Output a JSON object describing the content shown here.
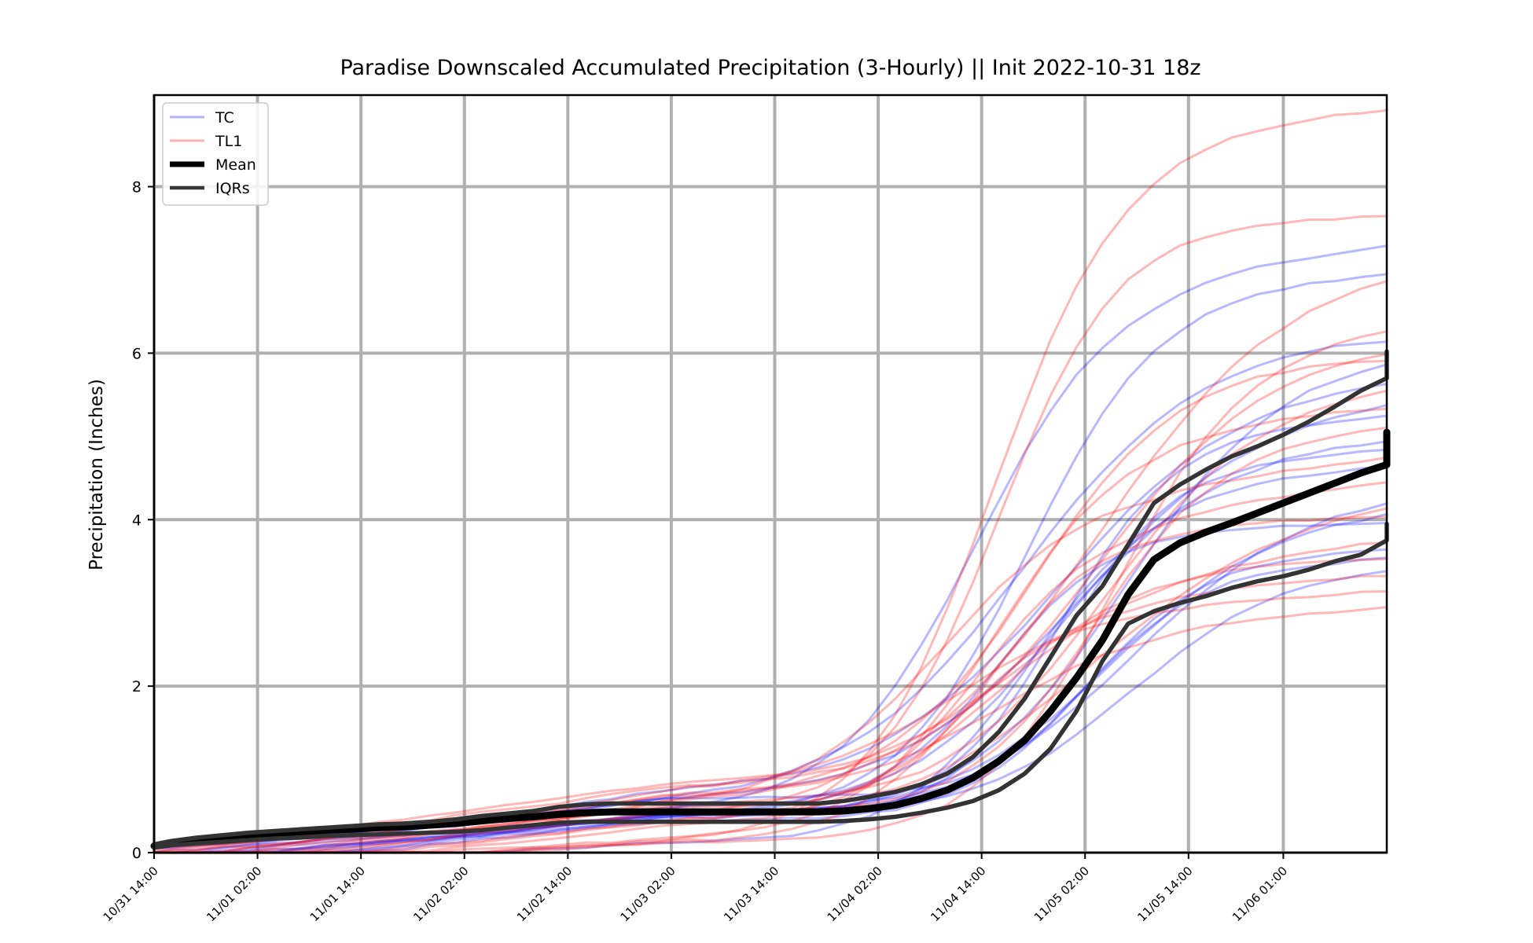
{
  "chart_data": {
    "type": "line",
    "title": "Paradise Downscaled Accumulated Precipitation (3-Hourly) || Init 2022-10-31 18z",
    "xlabel": "",
    "ylabel": "Precipitation (Inches)",
    "ylim": [
      0,
      9.1
    ],
    "yticks": [
      0,
      2,
      4,
      6,
      8
    ],
    "x_start": "10/31 14:00",
    "x_end": "11/06 13:00",
    "x_interval_hours": 3,
    "xticks": [
      "10/31 14:00",
      "11/01 02:00",
      "11/01 14:00",
      "11/02 02:00",
      "11/02 14:00",
      "11/03 02:00",
      "11/03 14:00",
      "11/04 02:00",
      "11/04 14:00",
      "11/05 02:00",
      "11/05 14:00",
      "11/06 01:00"
    ],
    "grid": true,
    "legend_position": "top-left",
    "legend": [
      {
        "label": "TC",
        "color": "#0000ff",
        "opacity": 0.3,
        "width": 3
      },
      {
        "label": "TL1",
        "color": "#ff0000",
        "opacity": 0.3,
        "width": 3
      },
      {
        "label": "Mean",
        "color": "#000000",
        "opacity": 1,
        "width": 7
      },
      {
        "label": "IQRs",
        "color": "#000000",
        "opacity": 0.78,
        "width": 4.5
      }
    ],
    "colors": {
      "TC": "#0000ff",
      "TL1": "#ff0000",
      "Mean": "#000000",
      "IQRs": "#333333",
      "grid": "#b0b0b0"
    },
    "series": [
      {
        "name": "Mean",
        "values": [
          0.08,
          0.12,
          0.15,
          0.18,
          0.21,
          0.23,
          0.25,
          0.27,
          0.28,
          0.3,
          0.31,
          0.33,
          0.35,
          0.38,
          0.41,
          0.43,
          0.46,
          0.48,
          0.49,
          0.49,
          0.49,
          0.49,
          0.49,
          0.49,
          0.49,
          0.49,
          0.49,
          0.5,
          0.53,
          0.57,
          0.65,
          0.75,
          0.9,
          1.1,
          1.35,
          1.7,
          2.1,
          2.55,
          3.1,
          3.52,
          3.72,
          3.85,
          3.96,
          4.08,
          4.2,
          4.32,
          4.44,
          4.56,
          4.66,
          4.76,
          4.86,
          4.96,
          5.05
        ]
      },
      {
        "name": "IQRs",
        "values": [
          0.1,
          0.14,
          0.18,
          0.21,
          0.24,
          0.26,
          0.28,
          0.3,
          0.32,
          0.34,
          0.35,
          0.37,
          0.4,
          0.44,
          0.47,
          0.5,
          0.55,
          0.58,
          0.59,
          0.59,
          0.59,
          0.59,
          0.59,
          0.59,
          0.59,
          0.59,
          0.59,
          0.62,
          0.67,
          0.73,
          0.82,
          0.95,
          1.15,
          1.45,
          1.85,
          2.35,
          2.85,
          3.2,
          3.7,
          4.2,
          4.42,
          4.6,
          4.76,
          4.88,
          5.02,
          5.18,
          5.36,
          5.55,
          5.7,
          5.86,
          5.98,
          6.0,
          6.02
        ]
      },
      {
        "name": "IQRs",
        "values": [
          0.06,
          0.09,
          0.11,
          0.13,
          0.15,
          0.17,
          0.18,
          0.2,
          0.21,
          0.22,
          0.23,
          0.24,
          0.25,
          0.27,
          0.3,
          0.33,
          0.36,
          0.37,
          0.37,
          0.37,
          0.37,
          0.37,
          0.37,
          0.37,
          0.37,
          0.37,
          0.37,
          0.38,
          0.4,
          0.43,
          0.48,
          0.54,
          0.62,
          0.75,
          0.95,
          1.25,
          1.7,
          2.3,
          2.75,
          2.9,
          3.0,
          3.08,
          3.18,
          3.26,
          3.32,
          3.4,
          3.5,
          3.58,
          3.75,
          3.85,
          3.92,
          3.94,
          3.95
        ]
      }
    ],
    "ensemble_members": {
      "note": "per-member accumulation: base stays low then rises to final total",
      "TC_final_totals": [
        7.35,
        7.02,
        6.3,
        6.1,
        5.8,
        5.5,
        5.3,
        5.1,
        4.9,
        4.7,
        4.4,
        4.2,
        4.0,
        3.7,
        3.6,
        3.5
      ],
      "TL1_final_totals": [
        9.0,
        7.7,
        7.15,
        6.4,
        6.2,
        6.0,
        5.7,
        5.4,
        5.2,
        4.8,
        4.5,
        4.3,
        4.1,
        3.8,
        3.6,
        3.4,
        3.2,
        3.0
      ]
    }
  }
}
